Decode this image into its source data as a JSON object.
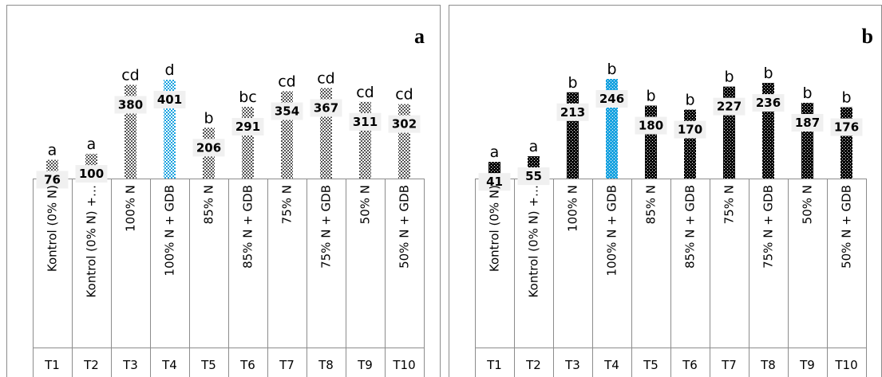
{
  "chart_data": [
    {
      "type": "bar",
      "panel_label": "a",
      "categories": [
        "Kontrol (0% N)",
        "Kontrol (0% N) +…",
        "100% N",
        "100% N + GDB",
        "85% N",
        "85% N + GDB",
        "75% N",
        "75% N + GDB",
        "50% N",
        "50% N + GDB"
      ],
      "treatments": [
        "T1",
        "T2",
        "T3",
        "T4",
        "T5",
        "T6",
        "T7",
        "T8",
        "T9",
        "T10"
      ],
      "values": [
        76,
        100,
        380,
        401,
        206,
        291,
        354,
        367,
        311,
        302
      ],
      "letters": [
        "a",
        "a",
        "cd",
        "d",
        "b",
        "bc",
        "cd",
        "cd",
        "cd",
        "cd"
      ],
      "highlight_index": 3,
      "ylim": [
        0,
        480
      ],
      "grid": false,
      "legend": "none",
      "colors": {
        "bar": "#5a5a5a",
        "highlight": "#1aa3e0",
        "border": "#8c8c8c",
        "label_box": "#f0f0f0"
      }
    },
    {
      "type": "bar",
      "panel_label": "b",
      "categories": [
        "Kontrol (0% N)",
        "Kontrol (0% N) +…",
        "100% N",
        "100% N + GDB",
        "85% N",
        "85% N + GDB",
        "75% N",
        "75% N + GDB",
        "50% N",
        "50% N + GDB"
      ],
      "treatments": [
        "T1",
        "T2",
        "T3",
        "T4",
        "T5",
        "T6",
        "T7",
        "T8",
        "T9",
        "T10"
      ],
      "values": [
        41,
        55,
        213,
        246,
        180,
        170,
        227,
        236,
        187,
        176
      ],
      "letters": [
        "a",
        "a",
        "b",
        "b",
        "b",
        "b",
        "b",
        "b",
        "b",
        "b"
      ],
      "highlight_index": 3,
      "ylim": [
        0,
        290
      ],
      "grid": false,
      "legend": "none",
      "colors": {
        "bar": "#000000",
        "highlight": "#1aa3e0",
        "border": "#8c8c8c",
        "label_box": "#f0f0f0"
      }
    }
  ]
}
